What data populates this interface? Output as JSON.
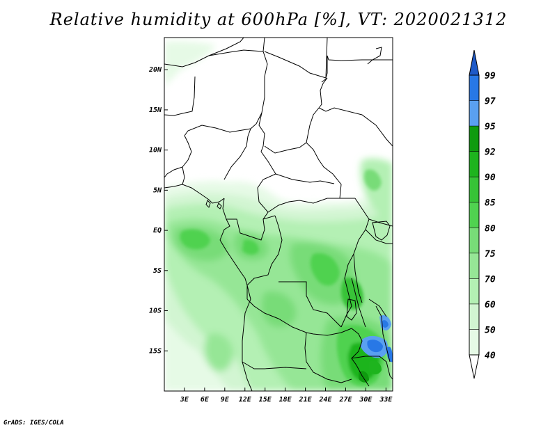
{
  "title": "Relative humidity at 600hPa [%], VT: 2020021312",
  "credit": "GrADS: IGES/COLA",
  "map": {
    "lon_range": [
      0,
      34
    ],
    "lat_range": [
      -20,
      24
    ],
    "lon_ticks": [
      {
        "value": 3,
        "label": "3E"
      },
      {
        "value": 6,
        "label": "6E"
      },
      {
        "value": 9,
        "label": "9E"
      },
      {
        "value": 12,
        "label": "12E"
      },
      {
        "value": 15,
        "label": "15E"
      },
      {
        "value": 18,
        "label": "18E"
      },
      {
        "value": 21,
        "label": "21E"
      },
      {
        "value": 24,
        "label": "24E"
      },
      {
        "value": 27,
        "label": "27E"
      },
      {
        "value": 30,
        "label": "30E"
      },
      {
        "value": 33,
        "label": "33E"
      }
    ],
    "lat_ticks": [
      {
        "value": 20,
        "label": "20N"
      },
      {
        "value": 15,
        "label": "15N"
      },
      {
        "value": 10,
        "label": "10N"
      },
      {
        "value": 5,
        "label": "5N"
      },
      {
        "value": 0,
        "label": "EQ"
      },
      {
        "value": -5,
        "label": "5S"
      },
      {
        "value": -10,
        "label": "10S"
      },
      {
        "value": -15,
        "label": "15S"
      }
    ]
  },
  "colorbar": {
    "levels": [
      {
        "label": "40",
        "color": "#e6fae6"
      },
      {
        "label": "50",
        "color": "#d2f5d2"
      },
      {
        "label": "60",
        "color": "#b4f0b4"
      },
      {
        "label": "70",
        "color": "#96e696"
      },
      {
        "label": "75",
        "color": "#78dc78"
      },
      {
        "label": "80",
        "color": "#50d250"
      },
      {
        "label": "85",
        "color": "#37c337"
      },
      {
        "label": "90",
        "color": "#1eb41e"
      },
      {
        "label": "92",
        "color": "#0f9b0f"
      },
      {
        "label": "95",
        "color": "#5aa0f0"
      },
      {
        "label": "97",
        "color": "#2878e6"
      },
      {
        "label": "99",
        "color": "#1e5ac8"
      }
    ]
  }
}
